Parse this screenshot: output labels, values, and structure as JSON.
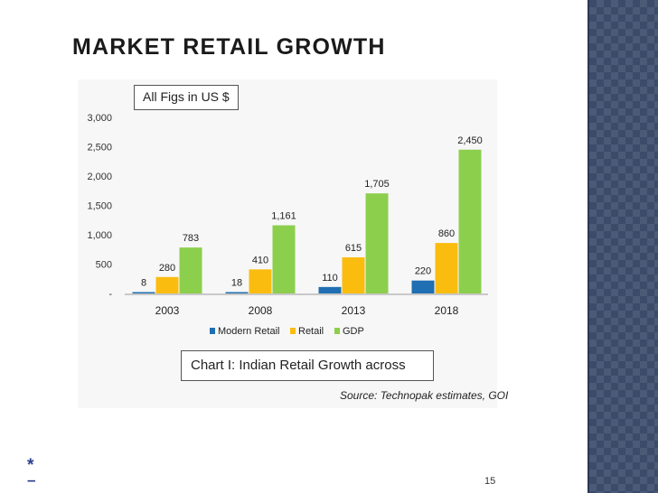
{
  "slide": {
    "title": "MARKET RETAIL GROWTH",
    "page_number": "15",
    "bullet_star": "*",
    "bullet_dash": "–"
  },
  "chart_data": {
    "type": "bar",
    "categories": [
      "2003",
      "2008",
      "2013",
      "2018"
    ],
    "series": [
      {
        "name": "Modern Retail",
        "color": "#1f6fb2",
        "values": [
          8,
          18,
          110,
          220
        ]
      },
      {
        "name": "Retail",
        "color": "#fbbc10",
        "values": [
          280,
          410,
          615,
          860
        ]
      },
      {
        "name": "GDP",
        "color": "#8ccf4d",
        "values": [
          783,
          1161,
          1705,
          2450
        ]
      }
    ],
    "data_labels": [
      [
        "8",
        "18",
        "110",
        "220"
      ],
      [
        "280",
        "410",
        "615",
        "860"
      ],
      [
        "783",
        "1,161",
        "1,705",
        "2,450"
      ]
    ],
    "yticks": [
      3000,
      2500,
      2000,
      1500,
      1000,
      500,
      0
    ],
    "ytick_labels": [
      "3,000",
      "2,500",
      "2,000",
      "1,500",
      "1,000",
      "500",
      "-"
    ],
    "ylim": [
      0,
      3000
    ],
    "annotation": "All Figs in US $",
    "caption": "Chart I: Indian Retail Growth across",
    "source": "Source: Technopak estimates, GOI",
    "grid": false,
    "legend_position": "bottom"
  }
}
